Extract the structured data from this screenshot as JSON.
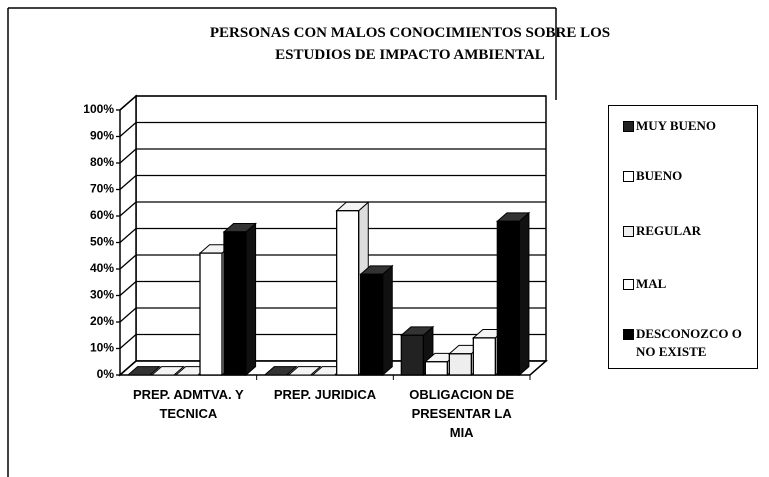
{
  "chart_data": {
    "type": "bar3d",
    "title": "PERSONAS CON MALOS CONOCIMIENTOS SOBRE LOS ESTUDIOS DE IMPACTO AMBIENTAL",
    "categories": [
      "PREP. ADMTVA. Y TECNICA",
      "PREP. JURIDICA",
      "OBLIGACION DE PRESENTAR LA MIA"
    ],
    "series": [
      {
        "name": "MUY BUENO",
        "color": "#222222",
        "values": [
          0,
          0,
          15
        ]
      },
      {
        "name": "BUENO",
        "color": "#ffffff",
        "values": [
          0,
          0,
          5
        ]
      },
      {
        "name": "REGULAR",
        "color": "#eeeeee",
        "values": [
          0,
          0,
          8
        ]
      },
      {
        "name": "MAL",
        "color": "#ffffff",
        "values": [
          46,
          62,
          14
        ]
      },
      {
        "name": "DESCONOZCO O NO EXISTE",
        "color": "#000000",
        "values": [
          54,
          38,
          58
        ]
      }
    ],
    "ylim": [
      0,
      100
    ],
    "yticks": [
      {
        "value": 0,
        "label": "0%"
      },
      {
        "value": 10,
        "label": "10%"
      },
      {
        "value": 20,
        "label": "20%"
      },
      {
        "value": 30,
        "label": "30%"
      },
      {
        "value": 40,
        "label": "40%"
      },
      {
        "value": 50,
        "label": "50%"
      },
      {
        "value": 60,
        "label": "60%"
      },
      {
        "value": 70,
        "label": "70%"
      },
      {
        "value": 80,
        "label": "80%"
      },
      {
        "value": 90,
        "label": "90%"
      },
      {
        "value": 100,
        "label": "100%"
      }
    ],
    "grid": true
  }
}
